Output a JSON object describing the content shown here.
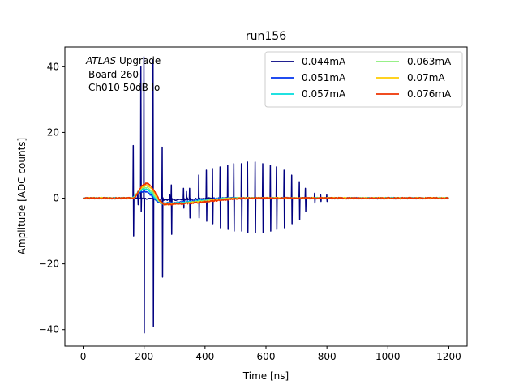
{
  "chart_data": {
    "type": "line",
    "title": "run156",
    "xlabel": "Time [ns]",
    "ylabel": "Amplitude [ADC counts]",
    "xlim": [
      -60,
      1260
    ],
    "ylim": [
      -45,
      46
    ],
    "xticks": [
      0,
      200,
      400,
      600,
      800,
      1000,
      1200
    ],
    "yticks": [
      -40,
      -20,
      0,
      20,
      40
    ],
    "xtick_labels": [
      "0",
      "200",
      "400",
      "600",
      "800",
      "1000",
      "1200"
    ],
    "ytick_labels": [
      "−40",
      "−20",
      "0",
      "20",
      "40"
    ],
    "grid": false,
    "legend_position": "top-right",
    "annotation": {
      "line1_italic": "ATLAS",
      "line1_rest": " Upgrade",
      "line2": "Board 260",
      "line3": "Ch010 50dB lo"
    },
    "series": [
      {
        "name": "0.044mA",
        "color": "#000080",
        "spikes": [
          [
            165,
            16,
            -11.5
          ],
          [
            180,
            2,
            -2
          ],
          [
            190,
            40,
            -4
          ],
          [
            200,
            43,
            -41
          ],
          [
            230,
            42,
            -39
          ],
          [
            260,
            15.5,
            -24
          ],
          [
            285,
            1,
            -1
          ],
          [
            290,
            4,
            -11
          ],
          [
            330,
            3,
            -3
          ],
          [
            340,
            2,
            -1
          ],
          [
            350,
            3,
            -6
          ],
          [
            380,
            7,
            -6
          ],
          [
            405,
            8.5,
            -7
          ],
          [
            425,
            9,
            -8
          ],
          [
            450,
            9.5,
            -9
          ],
          [
            475,
            10,
            -9.5
          ],
          [
            495,
            10.5,
            -10
          ],
          [
            520,
            10.5,
            -10
          ],
          [
            540,
            11,
            -10.5
          ],
          [
            565,
            11,
            -10.5
          ],
          [
            590,
            10.5,
            -10.5
          ],
          [
            615,
            10,
            -10
          ],
          [
            635,
            9.5,
            -9.5
          ],
          [
            660,
            8.5,
            -9
          ],
          [
            685,
            7,
            -8
          ],
          [
            710,
            5,
            -6.5
          ],
          [
            730,
            3,
            -4
          ],
          [
            760,
            1.5,
            -1.5
          ],
          [
            780,
            1,
            -1
          ],
          [
            800,
            1,
            -1
          ]
        ]
      },
      {
        "name": "0.051mA",
        "color": "#0033ee",
        "pulse": {
          "t0": 160,
          "peak_t": 200,
          "peak": 2.0,
          "under_t": 260,
          "under": -1.5,
          "recover_t": 480
        }
      },
      {
        "name": "0.057mA",
        "color": "#00dddd",
        "pulse": {
          "t0": 162,
          "peak_t": 202,
          "peak": 2.8,
          "under_t": 262,
          "under": -1.6,
          "recover_t": 500
        }
      },
      {
        "name": "0.063mA",
        "color": "#88ee77",
        "pulse": {
          "t0": 165,
          "peak_t": 205,
          "peak": 3.3,
          "under_t": 265,
          "under": -1.7,
          "recover_t": 520
        }
      },
      {
        "name": "0.07mA",
        "color": "#ffcc00",
        "pulse": {
          "t0": 168,
          "peak_t": 207,
          "peak": 3.9,
          "under_t": 268,
          "under": -1.8,
          "recover_t": 540
        }
      },
      {
        "name": "0.076mA",
        "color": "#ee3300",
        "pulse": {
          "t0": 170,
          "peak_t": 208,
          "peak": 4.5,
          "under_t": 270,
          "under": -1.9,
          "recover_t": 560
        }
      }
    ]
  }
}
